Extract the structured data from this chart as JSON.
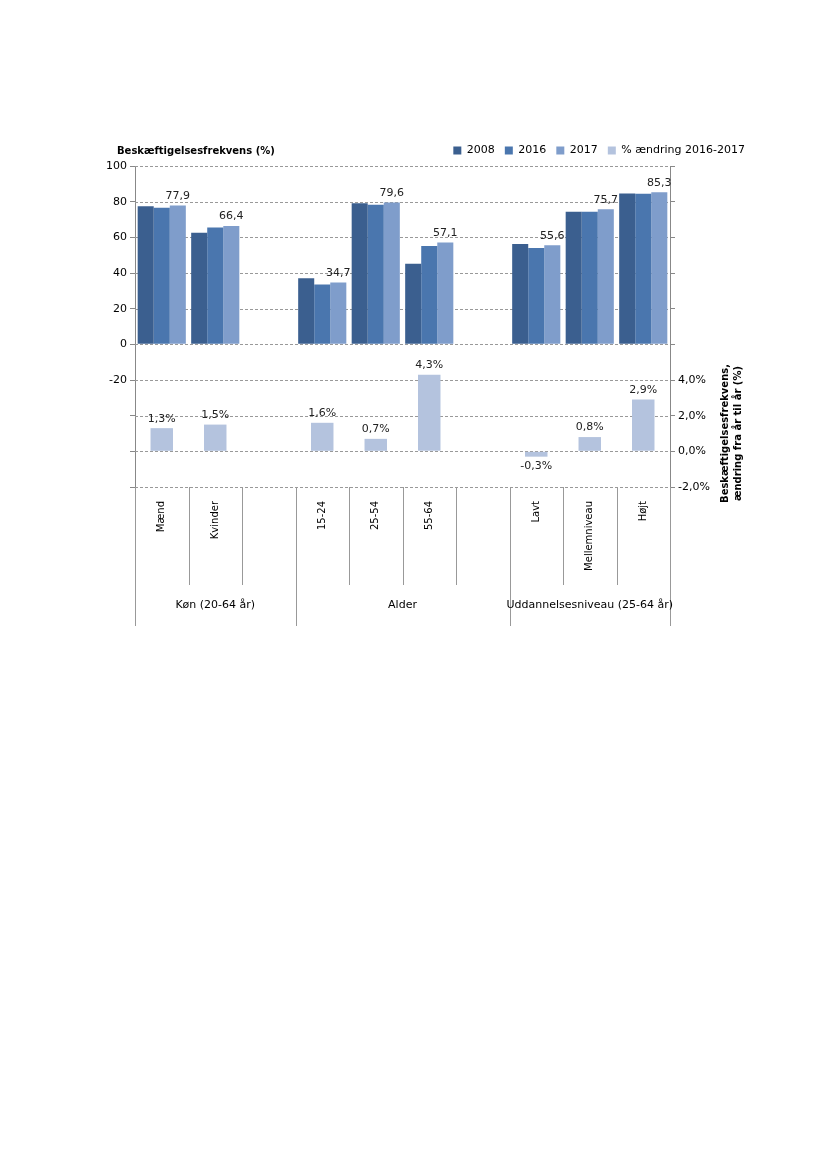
{
  "chart_data": {
    "type": "bar",
    "ylabel": "Beskæftigelsesfrekvens (%)",
    "y2label": "Beskæftigelsesfrekvens, ændring fra år til år (%)",
    "categories": [
      "Mænd",
      "Kvinder",
      null,
      "15-24",
      "25-54",
      "55-64",
      null,
      "Lavt",
      "Mellemniveau",
      "Højt"
    ],
    "series": [
      {
        "name": "2008",
        "color": "#3b5f8f",
        "values": [
          77.5,
          62.6,
          null,
          37.1,
          79.1,
          45.2,
          null,
          56.2,
          74.3,
          84.6
        ]
      },
      {
        "name": "2016",
        "color": "#4a76ae",
        "values": [
          76.6,
          65.5,
          null,
          33.5,
          78.3,
          55.1,
          null,
          54.0,
          74.3,
          84.4
        ]
      },
      {
        "name": "2017",
        "color": "#7f9dcb",
        "values": [
          77.9,
          66.4,
          null,
          34.7,
          79.6,
          57.1,
          null,
          55.6,
          75.7,
          85.3
        ],
        "value_labels": [
          "77,9",
          "66,4",
          null,
          "34,7",
          "79,6",
          "57,1",
          null,
          "55,6",
          "75,7",
          "85,3"
        ]
      },
      {
        "name": "% ændring 2016-2017",
        "color": "#b4c3de",
        "axis": "y2",
        "values": [
          1.3,
          1.5,
          null,
          1.6,
          0.7,
          4.3,
          null,
          -0.3,
          0.8,
          2.9
        ],
        "value_labels": [
          "1,3%",
          "1,5%",
          null,
          "1,6%",
          "0,7%",
          "4,3%",
          null,
          "-0,3%",
          "0,8%",
          "2,9%"
        ]
      }
    ],
    "annotations": [
      "Køn (20-64 år)",
      "Alder",
      "Uddannelsesniveau (25-64 år)"
    ],
    "ylim": [
      -80,
      100
    ],
    "yticks": [
      100,
      80,
      60,
      40,
      20,
      0,
      -20,
      {
        "value": -40,
        "label": null
      },
      {
        "value": -60,
        "label": null
      },
      {
        "value": -80,
        "label": null
      }
    ],
    "y2lim": [
      -2,
      16
    ],
    "y2ticks": [
      {
        "value": -2,
        "label": "-2,0%"
      },
      {
        "value": 0,
        "label": "0,0%"
      },
      {
        "value": 2,
        "label": "2,0%"
      },
      {
        "value": 4,
        "label": "4,0%"
      },
      {
        "value": 6,
        "label": null
      },
      {
        "value": 8,
        "label": null
      },
      {
        "value": 10,
        "label": null
      },
      {
        "value": 12,
        "label": null
      },
      {
        "value": 14,
        "label": null
      },
      {
        "value": 16,
        "label": null
      }
    ],
    "grid": "y",
    "legend": "top right"
  }
}
